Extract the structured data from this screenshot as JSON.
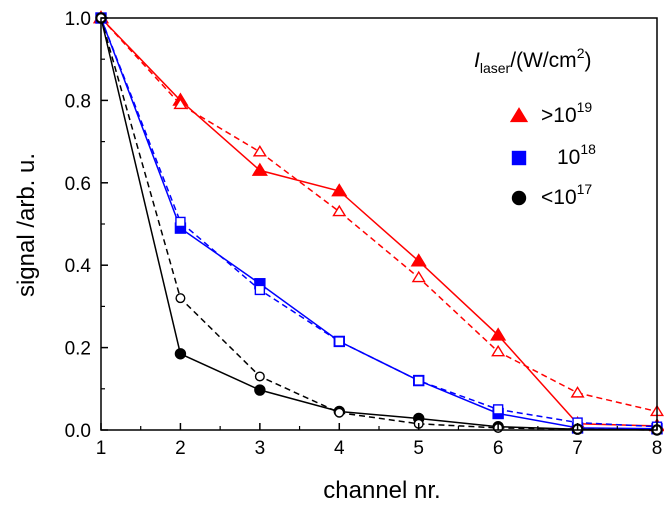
{
  "chart_data": {
    "type": "line",
    "xlabel": "channel nr.",
    "ylabel": "signal /arb. u.",
    "xlim": [
      1,
      8
    ],
    "ylim": [
      0,
      1.0
    ],
    "x_ticks": [
      "1",
      "2",
      "3",
      "4",
      "5",
      "6",
      "7",
      "8"
    ],
    "y_ticks": [
      "0.0",
      "0.2",
      "0.4",
      "0.6",
      "0.8",
      "1.0"
    ],
    "grid": false,
    "legend": {
      "position": "top-right",
      "title": {
        "symbol": "I",
        "sub": "laser",
        "text": "/(W/cm",
        "sup": "2",
        "close": ")"
      },
      "entries": [
        {
          "prefix": ">10",
          "sup": "19",
          "color": "#ff0000",
          "marker": "triangle"
        },
        {
          "prefix": "10",
          "sup": "18",
          "color": "#0000ff",
          "marker": "square"
        },
        {
          "prefix": "<10",
          "sup": "17",
          "color": "#000000",
          "marker": "circle"
        }
      ]
    },
    "x": [
      1,
      2,
      3,
      4,
      5,
      6,
      7,
      8
    ],
    "series": [
      {
        "color": "#ff0000",
        "marker": "triangle",
        "filled": true,
        "dashed": false,
        "values": [
          1.0,
          0.8,
          0.63,
          0.58,
          0.41,
          0.23,
          0.015,
          0.01
        ]
      },
      {
        "color": "#ff0000",
        "marker": "triangle",
        "filled": false,
        "dashed": true,
        "values": [
          1.0,
          0.79,
          0.675,
          0.53,
          0.37,
          0.19,
          0.09,
          0.045
        ]
      },
      {
        "color": "#0000ff",
        "marker": "square",
        "filled": true,
        "dashed": false,
        "values": [
          1.0,
          0.49,
          0.355,
          0.215,
          0.12,
          0.04,
          0.005,
          0.003
        ]
      },
      {
        "color": "#0000ff",
        "marker": "square",
        "filled": false,
        "dashed": true,
        "values": [
          1.0,
          0.505,
          0.34,
          0.215,
          0.12,
          0.05,
          0.018,
          0.008
        ]
      },
      {
        "color": "#000000",
        "marker": "circle",
        "filled": true,
        "dashed": false,
        "values": [
          1.0,
          0.185,
          0.097,
          0.045,
          0.028,
          0.008,
          0.002,
          0.0
        ]
      },
      {
        "color": "#000000",
        "marker": "circle",
        "filled": false,
        "dashed": true,
        "values": [
          1.0,
          0.32,
          0.13,
          0.042,
          0.015,
          0.005,
          0.002,
          0.0
        ]
      }
    ]
  }
}
